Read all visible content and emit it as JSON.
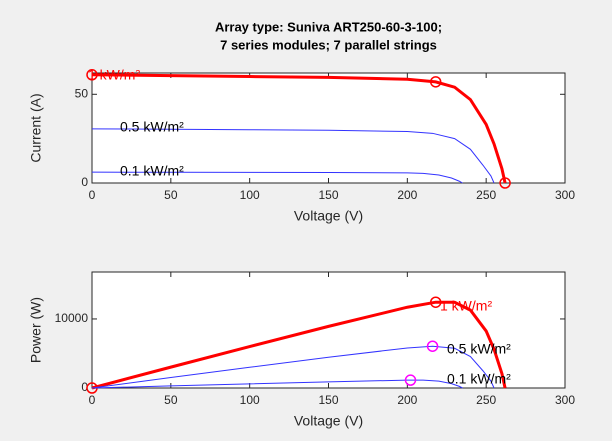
{
  "chart_data": [
    {
      "type": "line",
      "title": [
        "Array type: Suniva ART250-60-3-100;",
        "7 series modules; 7 parallel strings"
      ],
      "xlabel": "Voltage (V)",
      "ylabel": "Current (A)",
      "xlim": [
        0,
        300
      ],
      "xticks": [
        0,
        50,
        100,
        150,
        200,
        250,
        300
      ],
      "ylim": [
        0,
        62
      ],
      "yticks": [
        0,
        50
      ],
      "series": [
        {
          "name": "1 kW/m²",
          "color": "#ff0000",
          "width": 3,
          "x": [
            0,
            50,
            100,
            150,
            200,
            218,
            230,
            240,
            250,
            255,
            260,
            262
          ],
          "values": [
            61,
            60.5,
            60,
            59.5,
            58.5,
            57,
            54,
            47,
            33,
            22,
            8,
            0
          ],
          "marker_color": "#ff0000",
          "markers": [
            [
              0,
              61
            ],
            [
              218,
              57
            ],
            [
              262,
              0
            ]
          ]
        },
        {
          "name": "0.5 kW/m²",
          "color": "#3333ff",
          "width": 1,
          "x": [
            0,
            50,
            100,
            150,
            200,
            216,
            230,
            240,
            248,
            253,
            255
          ],
          "values": [
            30.5,
            30.3,
            30,
            29.7,
            29,
            28,
            25,
            19,
            10,
            4,
            0
          ]
        },
        {
          "name": "0.1 kW/m²",
          "color": "#3333ff",
          "width": 1,
          "x": [
            0,
            50,
            100,
            150,
            200,
            210,
            220,
            228,
            233,
            235
          ],
          "values": [
            6.1,
            6.05,
            6,
            5.95,
            5.7,
            5.4,
            4.5,
            2.8,
            1,
            0
          ]
        }
      ]
    },
    {
      "type": "line",
      "xlabel": "Voltage (V)",
      "ylabel": "Power (W)",
      "xlim": [
        0,
        300
      ],
      "xticks": [
        0,
        50,
        100,
        150,
        200,
        250,
        300
      ],
      "ylim": [
        0,
        16800
      ],
      "yticks": [
        0,
        10000
      ],
      "series": [
        {
          "name": "1 kW/m²",
          "color": "#ff0000",
          "width": 3,
          "x": [
            0,
            50,
            100,
            150,
            200,
            218,
            230,
            240,
            250,
            255,
            260,
            262
          ],
          "values": [
            0,
            3025,
            6000,
            8925,
            11700,
            12426,
            12420,
            11280,
            8250,
            5610,
            2080,
            0
          ],
          "marker_color": "#ff0000",
          "markers": [
            [
              0,
              0
            ],
            [
              218,
              12426
            ]
          ]
        },
        {
          "name": "0.5 kW/m²",
          "color": "#3333ff",
          "width": 1,
          "x": [
            0,
            50,
            100,
            150,
            200,
            216,
            230,
            240,
            248,
            253,
            255
          ],
          "values": [
            0,
            1515,
            3000,
            4455,
            5800,
            6048,
            5750,
            4560,
            2480,
            1012,
            0
          ],
          "marker_color": "#ff00ff",
          "markers": [
            [
              216,
              6048
            ]
          ]
        },
        {
          "name": "0.1 kW/m²",
          "color": "#3333ff",
          "width": 1,
          "x": [
            0,
            50,
            100,
            150,
            200,
            210,
            220,
            228,
            233,
            235
          ],
          "values": [
            0,
            302.5,
            600,
            892.5,
            1140,
            1134,
            990,
            638.4,
            233,
            0
          ],
          "marker_color": "#ff00ff",
          "markers": [
            [
              202,
              1140
            ]
          ]
        }
      ]
    }
  ]
}
